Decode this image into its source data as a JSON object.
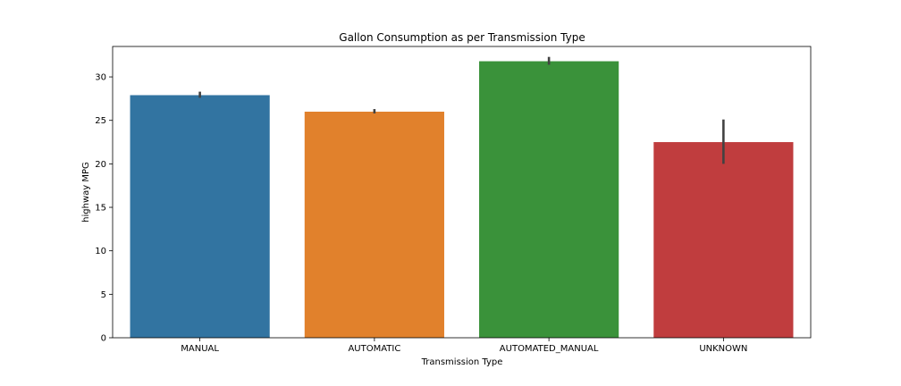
{
  "chart_data": {
    "type": "bar",
    "title": "Gallon Consumption as per Transmission Type",
    "xlabel": "Transmission Type",
    "ylabel": "highway MPG",
    "categories": [
      "MANUAL",
      "AUTOMATIC",
      "AUTOMATED_MANUAL",
      "UNKNOWN"
    ],
    "values": [
      27.9,
      26.0,
      31.8,
      22.5
    ],
    "error_low": [
      27.6,
      25.8,
      31.4,
      20.0
    ],
    "error_high": [
      28.3,
      26.3,
      32.3,
      25.1
    ],
    "colors": [
      "#3274a1",
      "#e1812c",
      "#3a923a",
      "#c03d3e"
    ],
    "ylim": [
      0,
      33.5
    ],
    "yticks": [
      0,
      5,
      10,
      15,
      20,
      25,
      30
    ],
    "grid": false,
    "legend": "none"
  }
}
